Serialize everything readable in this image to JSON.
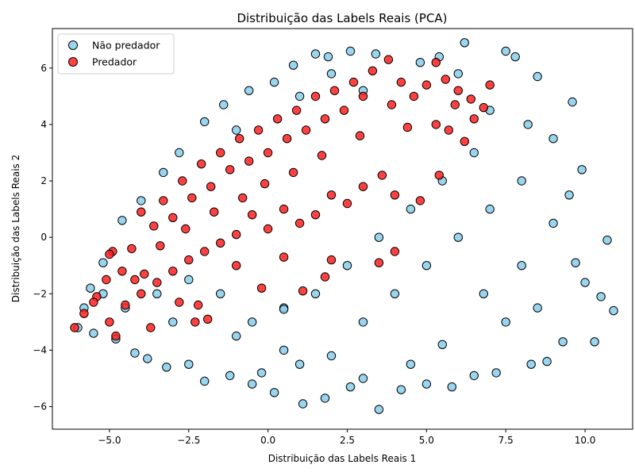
{
  "chart_data": {
    "type": "scatter",
    "title": "Distribuição das Labels Reais (PCA)",
    "xlabel": "Distribuição das Labels Reais  1",
    "ylabel": "Distribuição das Labels Reais  2",
    "xlim": [
      -6.8,
      11.5
    ],
    "ylim": [
      -6.8,
      7.4
    ],
    "xticks": [
      -5.0,
      -2.5,
      0.0,
      2.5,
      5.0,
      7.5,
      10.0
    ],
    "yticks": [
      -6,
      -4,
      -2,
      0,
      2,
      4,
      6
    ],
    "xtick_labels": [
      "−5.0",
      "−2.5",
      "0.0",
      "2.5",
      "5.0",
      "7.5",
      "10.0"
    ],
    "ytick_labels": [
      "−6",
      "−4",
      "−2",
      "0",
      "2",
      "4",
      "6"
    ],
    "grid": false,
    "legend_position": "top-left",
    "series": [
      {
        "name": "Não predador",
        "color": "#87ceeb",
        "edge_color": "#000000",
        "distribution_note": "dense cloud spanning x≈-6 to 11, y≈-6 to 7",
        "points": [
          [
            -6.0,
            -3.2
          ],
          [
            -5.5,
            -3.4
          ],
          [
            -5.2,
            -2.0
          ],
          [
            -4.8,
            -3.6
          ],
          [
            -4.2,
            -4.1
          ],
          [
            -3.8,
            -4.3
          ],
          [
            -3.2,
            -4.6
          ],
          [
            -2.5,
            -4.5
          ],
          [
            -2.0,
            -5.1
          ],
          [
            -1.2,
            -4.9
          ],
          [
            -0.5,
            -5.2
          ],
          [
            0.2,
            -5.5
          ],
          [
            1.1,
            -5.9
          ],
          [
            1.8,
            -5.7
          ],
          [
            2.6,
            -5.3
          ],
          [
            3.5,
            -6.1
          ],
          [
            4.2,
            -5.4
          ],
          [
            5.0,
            -5.2
          ],
          [
            5.8,
            -5.3
          ],
          [
            6.5,
            -4.9
          ],
          [
            7.2,
            -4.8
          ],
          [
            8.3,
            -4.5
          ],
          [
            8.8,
            -4.4
          ],
          [
            9.3,
            -3.7
          ],
          [
            10.3,
            -3.7
          ],
          [
            10.9,
            -2.6
          ],
          [
            10.5,
            -2.1
          ],
          [
            10.0,
            -1.6
          ],
          [
            9.7,
            -0.9
          ],
          [
            10.7,
            -0.1
          ],
          [
            9.9,
            2.4
          ],
          [
            9.5,
            1.5
          ],
          [
            9.0,
            3.5
          ],
          [
            9.6,
            4.8
          ],
          [
            8.5,
            5.7
          ],
          [
            7.8,
            6.4
          ],
          [
            7.5,
            6.6
          ],
          [
            6.2,
            6.9
          ],
          [
            5.4,
            6.4
          ],
          [
            4.8,
            6.2
          ],
          [
            3.4,
            6.5
          ],
          [
            2.6,
            6.6
          ],
          [
            1.9,
            6.4
          ],
          [
            1.5,
            6.5
          ],
          [
            0.8,
            6.1
          ],
          [
            0.2,
            5.5
          ],
          [
            -0.6,
            5.2
          ],
          [
            -1.4,
            4.7
          ],
          [
            -2.0,
            4.1
          ],
          [
            -2.8,
            3.0
          ],
          [
            -3.3,
            2.3
          ],
          [
            -4.0,
            1.3
          ],
          [
            -4.6,
            0.6
          ],
          [
            -5.2,
            -0.9
          ],
          [
            -5.6,
            -1.8
          ],
          [
            -5.8,
            -2.5
          ],
          [
            -3.0,
            -3.0
          ],
          [
            -1.0,
            -3.5
          ],
          [
            0.5,
            -4.0
          ],
          [
            2.0,
            -4.2
          ],
          [
            3.0,
            -3.0
          ],
          [
            4.0,
            -2.0
          ],
          [
            5.0,
            -1.0
          ],
          [
            6.0,
            0.0
          ],
          [
            7.0,
            1.0
          ],
          [
            8.0,
            2.0
          ],
          [
            6.5,
            3.0
          ],
          [
            5.5,
            2.0
          ],
          [
            4.5,
            1.0
          ],
          [
            3.5,
            0.0
          ],
          [
            2.5,
            -1.0
          ],
          [
            1.5,
            -2.0
          ],
          [
            0.5,
            -2.5
          ],
          [
            -0.5,
            -3.0
          ],
          [
            -1.5,
            -2.0
          ],
          [
            -2.5,
            -1.5
          ],
          [
            -3.5,
            -2.0
          ],
          [
            -4.5,
            -2.5
          ],
          [
            7.5,
            -3.0
          ],
          [
            8.0,
            -1.0
          ],
          [
            9.0,
            0.5
          ],
          [
            8.5,
            -2.5
          ],
          [
            6.8,
            -2.0
          ],
          [
            5.5,
            -3.8
          ],
          [
            4.5,
            -4.5
          ],
          [
            3.0,
            -5.0
          ],
          [
            1.0,
            -4.5
          ],
          [
            -0.2,
            -4.8
          ],
          [
            0.5,
            -2.55
          ],
          [
            7.0,
            4.5
          ],
          [
            8.2,
            4.0
          ],
          [
            6.0,
            5.8
          ],
          [
            3.0,
            5.2
          ],
          [
            2.0,
            5.8
          ],
          [
            1.0,
            5.0
          ],
          [
            -1.0,
            3.8
          ]
        ]
      },
      {
        "name": "Predador",
        "color": "#ff2020",
        "edge_color": "#000000",
        "distribution_note": "diagonal band from (-6,-3.2) to (7,5.5), above the main cloud",
        "points": [
          [
            -6.1,
            -3.2
          ],
          [
            -5.8,
            -2.7
          ],
          [
            -5.4,
            -2.1
          ],
          [
            -5.1,
            -1.5
          ],
          [
            -4.9,
            -0.5
          ],
          [
            -4.6,
            -1.2
          ],
          [
            -4.3,
            -0.4
          ],
          [
            -4.0,
            0.9
          ],
          [
            -3.6,
            0.4
          ],
          [
            -3.3,
            1.3
          ],
          [
            -3.0,
            0.7
          ],
          [
            -2.7,
            2.0
          ],
          [
            -2.4,
            1.4
          ],
          [
            -2.1,
            2.6
          ],
          [
            -1.8,
            1.8
          ],
          [
            -1.5,
            3.0
          ],
          [
            -1.2,
            2.4
          ],
          [
            -0.9,
            3.5
          ],
          [
            -0.6,
            2.7
          ],
          [
            -0.3,
            3.8
          ],
          [
            0.0,
            3.0
          ],
          [
            0.3,
            4.2
          ],
          [
            0.6,
            3.5
          ],
          [
            0.9,
            4.5
          ],
          [
            1.2,
            3.8
          ],
          [
            1.5,
            5.0
          ],
          [
            1.8,
            4.2
          ],
          [
            2.1,
            5.2
          ],
          [
            2.4,
            4.5
          ],
          [
            2.7,
            5.5
          ],
          [
            3.0,
            5.0
          ],
          [
            3.3,
            5.9
          ],
          [
            3.8,
            6.3
          ],
          [
            4.2,
            5.5
          ],
          [
            4.6,
            5.0
          ],
          [
            5.0,
            5.4
          ],
          [
            5.3,
            6.2
          ],
          [
            5.6,
            5.6
          ],
          [
            6.0,
            5.2
          ],
          [
            6.4,
            4.9
          ],
          [
            6.8,
            4.6
          ],
          [
            7.0,
            5.4
          ],
          [
            6.2,
            3.4
          ],
          [
            5.7,
            3.8
          ],
          [
            5.4,
            2.2
          ],
          [
            4.8,
            1.3
          ],
          [
            4.0,
            1.5
          ],
          [
            3.6,
            2.2
          ],
          [
            3.0,
            1.8
          ],
          [
            2.5,
            1.2
          ],
          [
            2.0,
            1.5
          ],
          [
            1.5,
            0.8
          ],
          [
            1.0,
            0.5
          ],
          [
            0.5,
            1.0
          ],
          [
            0.0,
            0.3
          ],
          [
            -0.5,
            0.8
          ],
          [
            -1.0,
            0.1
          ],
          [
            -1.5,
            -0.2
          ],
          [
            -2.0,
            -0.5
          ],
          [
            -2.5,
            -0.8
          ],
          [
            -3.0,
            -1.2
          ],
          [
            -3.5,
            -1.6
          ],
          [
            -4.0,
            -2.0
          ],
          [
            -4.5,
            -2.4
          ],
          [
            -5.0,
            -3.0
          ],
          [
            -4.8,
            -3.5
          ],
          [
            -3.7,
            -3.2
          ],
          [
            -2.3,
            -3.0
          ],
          [
            -1.9,
            -2.9
          ],
          [
            -2.2,
            -2.4
          ],
          [
            -0.2,
            -1.8
          ],
          [
            1.1,
            -1.9
          ],
          [
            1.8,
            -1.4
          ],
          [
            3.5,
            -0.9
          ],
          [
            4.0,
            -0.5
          ],
          [
            2.0,
            -0.8
          ],
          [
            0.5,
            -0.7
          ],
          [
            -1.0,
            -1.0
          ],
          [
            -2.8,
            -2.3
          ],
          [
            -4.2,
            -1.5
          ],
          [
            -5.5,
            -2.3
          ],
          [
            -5.0,
            -0.6
          ],
          [
            -3.9,
            -1.3
          ],
          [
            5.3,
            4.0
          ],
          [
            4.4,
            3.9
          ],
          [
            3.9,
            4.7
          ],
          [
            2.9,
            3.6
          ],
          [
            1.7,
            2.9
          ],
          [
            0.8,
            2.3
          ],
          [
            -0.1,
            1.9
          ],
          [
            -0.8,
            1.4
          ],
          [
            -1.7,
            0.9
          ],
          [
            -2.6,
            0.3
          ],
          [
            -3.4,
            -0.3
          ],
          [
            6.5,
            4.2
          ],
          [
            5.9,
            4.7
          ]
        ]
      }
    ]
  }
}
